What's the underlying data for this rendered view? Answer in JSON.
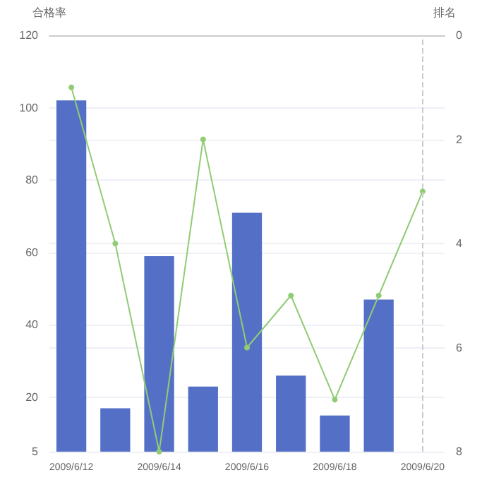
{
  "chart_data": {
    "type": "bar",
    "ylabel": "合格率",
    "y2label": "排名",
    "x": [
      "2009-06-12",
      "2009-06-13",
      "2009-06-14",
      "2009-06-15",
      "2009-06-16",
      "2009-06-17",
      "2009-06-18",
      "2009-06-19"
    ],
    "xlim": [
      "2009-06-11T12:00",
      "2009-06-20T12:00"
    ],
    "xticks": [
      {
        "value": "2009-06-12",
        "label": "2009/6/12"
      },
      {
        "value": "2009-06-14",
        "label": "2009/6/14"
      },
      {
        "value": "2009-06-16",
        "label": "2009/6/16"
      },
      {
        "value": "2009-06-18",
        "label": "2009/6/18"
      },
      {
        "value": "2009-06-20",
        "label": "2009/6/20"
      }
    ],
    "ylim": [
      5,
      120
    ],
    "yticks": [
      5,
      20,
      40,
      60,
      80,
      100,
      120
    ],
    "y2lim": [
      8,
      0
    ],
    "y2ticks": [
      0,
      2,
      4,
      6,
      8
    ],
    "series": [
      {
        "color": "#5470c6",
        "values": [
          102,
          17,
          59,
          23,
          71,
          26,
          15,
          47
        ]
      },
      {
        "type": "line",
        "axis": "y2",
        "color": "#91cc75",
        "x": [
          "2009-06-12",
          "2009-06-13",
          "2009-06-14",
          "2009-06-15",
          "2009-06-16",
          "2009-06-17",
          "2009-06-18",
          "2009-06-19",
          "2009-06-20"
        ],
        "values": [
          1,
          4,
          8,
          2,
          6,
          5,
          7,
          5,
          3
        ]
      }
    ],
    "ref_lines": [
      {
        "axis": "x",
        "value": "2009-06-20",
        "color": "#cccccc",
        "line_style": "dashed"
      }
    ],
    "grid": true,
    "marker": "circle",
    "line_style": "solid"
  }
}
